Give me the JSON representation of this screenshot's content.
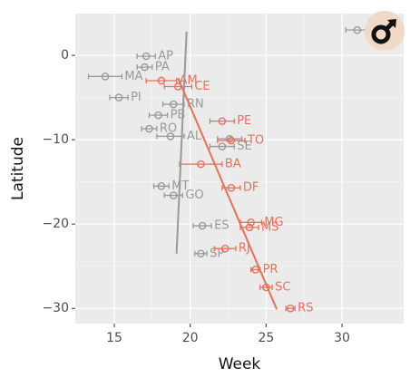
{
  "chart_data": {
    "type": "scatter",
    "x_label": "Week",
    "y_label": "Latitude",
    "xlim": [
      12.43,
      34.06
    ],
    "ylim": [
      -31.8,
      4.95
    ],
    "xticks": [
      15,
      20,
      25,
      30
    ],
    "yticks": [
      0,
      {
        "value": -10,
        "label": "−10"
      },
      {
        "value": -20,
        "label": "−20"
      },
      {
        "value": -30,
        "label": "−30"
      }
    ],
    "grid": true,
    "series": [
      {
        "color": "#999999",
        "labels": [
          null,
          "AP",
          "PA",
          "MA",
          "PI",
          "RN",
          "PB",
          "RO",
          "AL",
          "SE",
          null,
          "MT",
          "GO",
          "ES",
          "SP"
        ],
        "x": [
          31.0,
          17.1,
          17.0,
          14.4,
          15.3,
          18.9,
          17.9,
          17.3,
          18.7,
          22.1,
          22.6,
          18.1,
          18.9,
          20.8,
          20.7
        ],
        "values": [
          3.0,
          -0.1,
          -1.4,
          -2.5,
          -5.0,
          -5.8,
          -7.1,
          -8.7,
          -9.6,
          -10.8,
          -9.9,
          -15.5,
          -16.6,
          -20.2,
          -23.5
        ],
        "xerr": [
          0.75,
          0.6,
          0.5,
          1.1,
          0.6,
          0.7,
          0.6,
          0.5,
          0.9,
          0.8,
          0.8,
          0.5,
          0.6,
          0.6,
          0.4
        ]
      },
      {
        "color": "#e8705a",
        "labels": [
          "AM",
          "CE",
          "PE",
          "TO",
          "BA",
          "DF",
          "MG",
          "MS",
          "RJ",
          "PR",
          "SC",
          "RS"
        ],
        "x": [
          18.1,
          19.2,
          22.1,
          22.7,
          20.7,
          22.7,
          24.0,
          23.9,
          22.3,
          24.3,
          25.0,
          26.6
        ],
        "values": [
          -3.0,
          -3.7,
          -7.8,
          -10.1,
          -12.9,
          -15.7,
          -19.8,
          -20.4,
          -22.9,
          -25.4,
          -27.5,
          -30.0
        ],
        "xerr": [
          1.0,
          0.9,
          0.8,
          0.9,
          1.4,
          0.6,
          0.7,
          0.6,
          0.7,
          0.3,
          0.4,
          0.3
        ]
      }
    ],
    "lines": [
      {
        "color": "#999999",
        "x": [
          19.76,
          19.1
        ],
        "values": [
          2.8,
          -23.5
        ]
      },
      {
        "color": "#e8705a",
        "x": [
          19.2,
          25.7
        ],
        "values": [
          -2.7,
          -30.1
        ]
      }
    ]
  }
}
